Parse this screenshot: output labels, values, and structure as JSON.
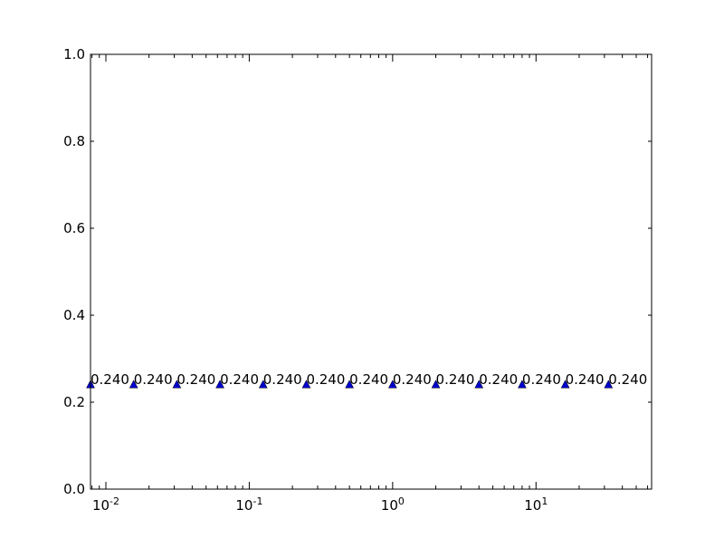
{
  "chart_data": {
    "type": "scatter",
    "title": "",
    "xlabel": "",
    "ylabel": "",
    "xscale": "log",
    "xlim": [
      0.0078125,
      64
    ],
    "ylim": [
      0.0,
      1.0
    ],
    "grid": false,
    "marker": "triangle-up",
    "marker_color": "#0000cc",
    "y_ticks": [
      "0.0",
      "0.2",
      "0.4",
      "0.6",
      "0.8",
      "1.0"
    ],
    "x_ticks": [
      {
        "base": "10",
        "exp": "-2",
        "value": 0.01
      },
      {
        "base": "10",
        "exp": "-1",
        "value": 0.1
      },
      {
        "base": "10",
        "exp": "0",
        "value": 1
      },
      {
        "base": "10",
        "exp": "1",
        "value": 10
      }
    ],
    "points": [
      {
        "x": 0.0078125,
        "y": 0.24,
        "label": "0.240"
      },
      {
        "x": 0.015625,
        "y": 0.24,
        "label": "0.240"
      },
      {
        "x": 0.03125,
        "y": 0.24,
        "label": "0.240"
      },
      {
        "x": 0.0625,
        "y": 0.24,
        "label": "0.240"
      },
      {
        "x": 0.125,
        "y": 0.24,
        "label": "0.240"
      },
      {
        "x": 0.25,
        "y": 0.24,
        "label": "0.240"
      },
      {
        "x": 0.5,
        "y": 0.24,
        "label": "0.240"
      },
      {
        "x": 1,
        "y": 0.24,
        "label": "0.240"
      },
      {
        "x": 2,
        "y": 0.24,
        "label": "0.240"
      },
      {
        "x": 4,
        "y": 0.24,
        "label": "0.240"
      },
      {
        "x": 8,
        "y": 0.24,
        "label": "0.240"
      },
      {
        "x": 16,
        "y": 0.24,
        "label": "0.240"
      },
      {
        "x": 32,
        "y": 0.24,
        "label": "0.240"
      }
    ]
  }
}
